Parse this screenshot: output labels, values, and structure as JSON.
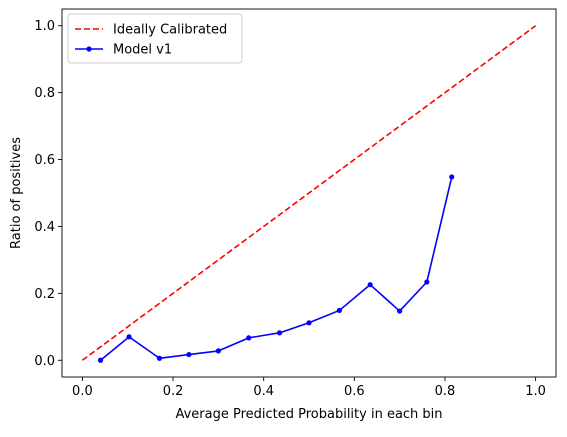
{
  "chart_data": {
    "type": "line",
    "title": "",
    "xlabel": "Average Predicted Probability in each bin",
    "ylabel": "Ratio of positives",
    "xlim": [
      -0.045,
      1.045
    ],
    "ylim": [
      -0.05,
      1.05
    ],
    "xticks": [
      0.0,
      0.2,
      0.4,
      0.6,
      0.8,
      1.0
    ],
    "xtick_labels": [
      "0.0",
      "0.2",
      "0.4",
      "0.6",
      "0.8",
      "1.0"
    ],
    "yticks": [
      0.0,
      0.2,
      0.4,
      0.6,
      0.8,
      1.0
    ],
    "ytick_labels": [
      "0.0",
      "0.2",
      "0.4",
      "0.6",
      "0.8",
      "1.0"
    ],
    "grid": false,
    "legend_position": "top-left",
    "series": [
      {
        "name": "Ideally Calibrated",
        "style": "dashed",
        "color": "#ff0000",
        "markers": false,
        "x": [
          0.0,
          1.0
        ],
        "y": [
          0.0,
          1.0
        ]
      },
      {
        "name": "Model v1",
        "style": "solid",
        "color": "#0000ff",
        "markers": true,
        "x": [
          0.04,
          0.103,
          0.17,
          0.235,
          0.3,
          0.367,
          0.435,
          0.5,
          0.567,
          0.635,
          0.7,
          0.76,
          0.815
        ],
        "y": [
          0.0,
          0.07,
          0.006,
          0.017,
          0.028,
          0.067,
          0.082,
          0.112,
          0.149,
          0.226,
          0.147,
          0.234,
          0.548
        ]
      }
    ]
  }
}
